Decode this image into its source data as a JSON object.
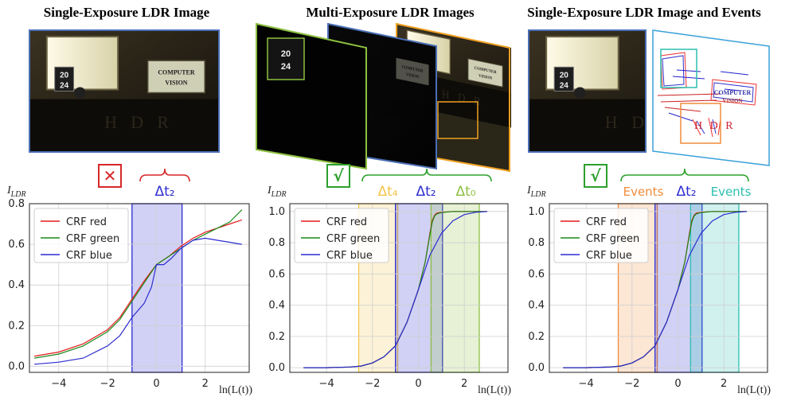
{
  "panels": [
    {
      "title": "Single-Exposure LDR Image",
      "mark": "✕",
      "interval_labels": [
        "Δt₂"
      ]
    },
    {
      "title": "Multi-Exposure LDR Images",
      "mark": "√",
      "interval_labels": [
        "Δt₄",
        "Δt₂",
        "Δt₀"
      ]
    },
    {
      "title": "Single-Exposure LDR Image and Events",
      "mark": "√",
      "interval_labels": [
        "Events",
        "Δt₂",
        "Events"
      ]
    }
  ],
  "scene_text": {
    "sign_line1": "COMPUTER",
    "sign_line2": "VISION",
    "clock_top": "20",
    "clock_bottom": "24",
    "wall_text": "H D R"
  },
  "colors": {
    "red": "#e41a1c",
    "green": "#1a8a1a",
    "blue": "#2c2cd0",
    "orange": "#f08c3a",
    "yellow": "#f2c44a",
    "lime": "#8cbf3f",
    "teal": "#2bbfb0",
    "cross": "#d62728",
    "check": "#2ca02c"
  },
  "chart_data": [
    {
      "type": "line",
      "ylabel": "I_LDR",
      "xlabel": "ln(L(t))",
      "xlim": [
        -5.2,
        3.8
      ],
      "ylim": [
        -0.03,
        0.8
      ],
      "xticks": [
        -4,
        -2,
        0,
        2
      ],
      "yticks": [
        0.0,
        0.2,
        0.4,
        0.6,
        0.8
      ],
      "ytick_labels": [
        "0.0",
        "0.2",
        "0.4",
        "0.6",
        "0.8"
      ],
      "grid": true,
      "legend": "upper-left",
      "series": [
        {
          "name": "CRF red",
          "color": "red",
          "x": [
            -5,
            -4,
            -3,
            -2,
            -1.5,
            -1,
            -0.5,
            0,
            0.5,
            1,
            1.5,
            2,
            2.5,
            3,
            3.5
          ],
          "y": [
            0.05,
            0.07,
            0.11,
            0.18,
            0.24,
            0.33,
            0.42,
            0.5,
            0.54,
            0.59,
            0.63,
            0.66,
            0.68,
            0.7,
            0.72
          ]
        },
        {
          "name": "CRF green",
          "color": "green",
          "x": [
            -5,
            -4,
            -3,
            -2,
            -1.5,
            -1,
            -0.5,
            0,
            0.5,
            1,
            1.5,
            2,
            2.5,
            3,
            3.5
          ],
          "y": [
            0.04,
            0.06,
            0.1,
            0.17,
            0.23,
            0.32,
            0.41,
            0.5,
            0.54,
            0.58,
            0.62,
            0.65,
            0.68,
            0.71,
            0.77
          ]
        },
        {
          "name": "CRF blue",
          "color": "blue",
          "x": [
            -5,
            -4,
            -3,
            -2,
            -1.5,
            -1,
            -0.5,
            -0.2,
            0,
            0.3,
            0.6,
            1,
            1.5,
            2,
            2.5,
            3,
            3.5
          ],
          "y": [
            0.01,
            0.02,
            0.04,
            0.1,
            0.15,
            0.24,
            0.31,
            0.39,
            0.5,
            0.5,
            0.53,
            0.58,
            0.62,
            0.63,
            0.62,
            0.61,
            0.6
          ]
        }
      ],
      "intervals": [
        {
          "label": "Δt₂",
          "from": -1.0,
          "to": 1.05,
          "color": "blue"
        }
      ]
    },
    {
      "type": "line",
      "ylabel": "I_LDR",
      "xlabel": "ln(L(t))",
      "xlim": [
        -5.6,
        3.9
      ],
      "ylim": [
        -0.03,
        1.05
      ],
      "xticks": [
        -4,
        -2,
        0,
        2
      ],
      "yticks": [
        0.0,
        0.2,
        0.4,
        0.6,
        0.8,
        1.0
      ],
      "ytick_labels": [
        "0.0",
        "0.2",
        "0.4",
        "0.6",
        "0.8",
        "1.0"
      ],
      "grid": true,
      "legend": "upper-left",
      "series": [
        {
          "name": "CRF red",
          "color": "red",
          "x": [
            -5,
            -4,
            -3,
            -2.5,
            -2,
            -1.5,
            -1,
            -0.5,
            0,
            0.3,
            0.5,
            0.6,
            0.7,
            0.8,
            1.0,
            1.5,
            2,
            3
          ],
          "y": [
            0.0,
            0.0,
            0.004,
            0.01,
            0.03,
            0.07,
            0.14,
            0.29,
            0.5,
            0.68,
            0.86,
            0.94,
            0.975,
            0.99,
            0.995,
            1.0,
            1.0,
            1.0
          ]
        },
        {
          "name": "CRF green",
          "color": "green",
          "x": [
            -5,
            -4,
            -3,
            -2.5,
            -2,
            -1.5,
            -1,
            -0.5,
            0,
            0.3,
            0.5,
            0.6,
            0.7,
            0.8,
            1.0,
            1.5,
            2,
            3
          ],
          "y": [
            0.0,
            0.0,
            0.004,
            0.01,
            0.03,
            0.07,
            0.14,
            0.29,
            0.5,
            0.68,
            0.85,
            0.93,
            0.97,
            0.985,
            0.993,
            1.0,
            1.0,
            1.0
          ]
        },
        {
          "name": "CRF blue",
          "color": "blue",
          "x": [
            -5,
            -4,
            -3,
            -2.5,
            -2,
            -1.5,
            -1,
            -0.5,
            0,
            0.5,
            1,
            1.5,
            2,
            2.5,
            3
          ],
          "y": [
            0.0,
            0.0,
            0.004,
            0.01,
            0.03,
            0.07,
            0.14,
            0.29,
            0.5,
            0.72,
            0.86,
            0.94,
            0.98,
            0.995,
            1.0
          ]
        }
      ],
      "intervals": [
        {
          "label": "Δt₄",
          "from": -2.6,
          "to": -0.9,
          "color": "yellow"
        },
        {
          "label": "Δt₂",
          "from": -1.0,
          "to": 1.05,
          "color": "blue"
        },
        {
          "label": "Δt₀",
          "from": 0.55,
          "to": 2.65,
          "color": "lime"
        }
      ]
    },
    {
      "type": "line",
      "ylabel": "I_LDR",
      "xlabel": "ln(L(t))",
      "xlim": [
        -5.6,
        3.9
      ],
      "ylim": [
        -0.03,
        1.05
      ],
      "xticks": [
        -4,
        -2,
        0,
        2
      ],
      "yticks": [
        0.0,
        0.2,
        0.4,
        0.6,
        0.8,
        1.0
      ],
      "ytick_labels": [
        "0.0",
        "0.2",
        "0.4",
        "0.6",
        "0.8",
        "1.0"
      ],
      "grid": true,
      "legend": "upper-left",
      "series": [
        {
          "name": "CRF red",
          "color": "red",
          "x": [
            -5,
            -4,
            -3,
            -2.5,
            -2,
            -1.5,
            -1,
            -0.5,
            0,
            0.3,
            0.5,
            0.6,
            0.7,
            0.8,
            1.0,
            1.5,
            2,
            3
          ],
          "y": [
            0.0,
            0.0,
            0.004,
            0.01,
            0.03,
            0.07,
            0.14,
            0.29,
            0.5,
            0.68,
            0.86,
            0.94,
            0.975,
            0.99,
            0.995,
            1.0,
            1.0,
            1.0
          ]
        },
        {
          "name": "CRF green",
          "color": "green",
          "x": [
            -5,
            -4,
            -3,
            -2.5,
            -2,
            -1.5,
            -1,
            -0.5,
            0,
            0.3,
            0.5,
            0.6,
            0.7,
            0.8,
            1.0,
            1.5,
            2,
            3
          ],
          "y": [
            0.0,
            0.0,
            0.004,
            0.01,
            0.03,
            0.07,
            0.14,
            0.29,
            0.5,
            0.68,
            0.85,
            0.93,
            0.97,
            0.985,
            0.993,
            1.0,
            1.0,
            1.0
          ]
        },
        {
          "name": "CRF blue",
          "color": "blue",
          "x": [
            -5,
            -4,
            -3,
            -2.5,
            -2,
            -1.5,
            -1,
            -0.5,
            0,
            0.5,
            1,
            1.5,
            2,
            2.5,
            3
          ],
          "y": [
            0.0,
            0.0,
            0.004,
            0.01,
            0.03,
            0.07,
            0.14,
            0.29,
            0.5,
            0.72,
            0.86,
            0.94,
            0.98,
            0.995,
            1.0
          ]
        }
      ],
      "intervals": [
        {
          "label": "Events",
          "from": -2.6,
          "to": -0.9,
          "color": "orange"
        },
        {
          "label": "Δt₂",
          "from": -1.0,
          "to": 1.05,
          "color": "blue"
        },
        {
          "label": "Events",
          "from": 0.55,
          "to": 2.65,
          "color": "teal"
        }
      ]
    }
  ]
}
